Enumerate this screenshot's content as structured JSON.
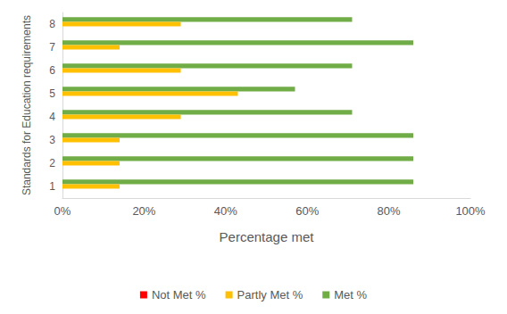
{
  "chart_data": {
    "type": "bar",
    "orientation": "horizontal",
    "stacked": false,
    "x_label": "Percentage met",
    "y_label": "Standards for Education requirements",
    "categories": [
      "1",
      "2",
      "3",
      "4",
      "5",
      "6",
      "7",
      "8"
    ],
    "series": [
      {
        "name": "Not Met %",
        "color": "#ff0000",
        "values": [
          0,
          0,
          0,
          0,
          0,
          0,
          0,
          0
        ]
      },
      {
        "name": "Partly Met %",
        "color": "#ffc000",
        "values": [
          14,
          14,
          14,
          29,
          43,
          29,
          14,
          29
        ]
      },
      {
        "name": "Met %",
        "color": "#70ad47",
        "values": [
          86,
          86,
          86,
          71,
          57,
          71,
          86,
          71
        ]
      }
    ],
    "xlim": [
      0,
      100
    ],
    "xticks": [
      {
        "value": 0,
        "label": "0%"
      },
      {
        "value": 20,
        "label": "20%"
      },
      {
        "value": 40,
        "label": "40%"
      },
      {
        "value": 60,
        "label": "60%"
      },
      {
        "value": 80,
        "label": "80%"
      },
      {
        "value": 100,
        "label": "100%"
      }
    ],
    "grid": false,
    "legend": "bottom"
  }
}
